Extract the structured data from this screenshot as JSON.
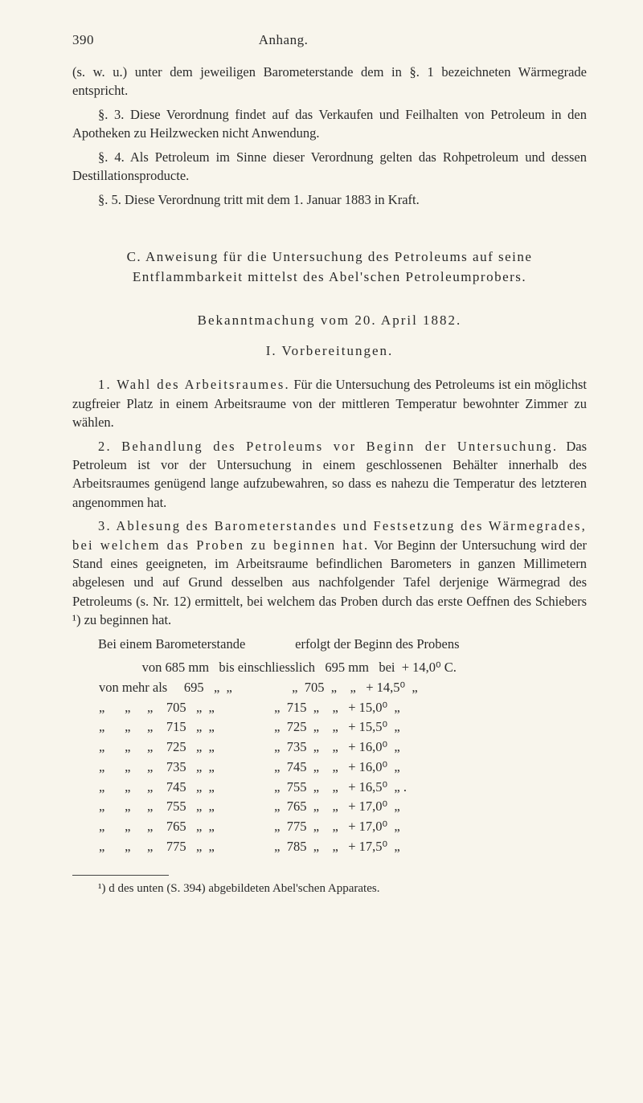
{
  "page_number": "390",
  "running_head": "Anhang.",
  "background_color": "#f8f5ec",
  "text_color": "#2a2a2a",
  "font_family": "Georgia, 'Times New Roman', serif",
  "body_fontsize_pt": 12,
  "para_sw": "(s. w. u.) unter dem jeweiligen Barometerstande dem in §. 1 bezeichneten Wärmegrade entspricht.",
  "para_s3": "§. 3.   Diese Verordnung findet auf das Verkaufen und Feilhalten von Petroleum in den Apotheken zu Heilzwecken nicht Anwendung.",
  "para_s4": "§. 4.   Als Petroleum im Sinne dieser Verordnung gelten das Rohpetroleum und dessen Destillationsproducte.",
  "para_s5": "§. 5.   Diese Verordnung tritt mit dem 1. Januar 1883 in Kraft.",
  "section_c": "C.  Anweisung für die Untersuchung des Petroleums auf seine Entflammbarkeit mittelst des Abel'schen Petroleumprobers.",
  "bekannt": "Bekanntmachung vom 20. April 1882.",
  "vorb": "I.   Vorbereitungen.",
  "para1_lead": "1. Wahl des Arbeitsraumes.",
  "para1_body": "  Für die Untersuchung des Petroleums ist ein möglichst zugfreier Platz in einem Arbeitsraume von der mittleren Temperatur bewohnter Zimmer zu wählen.",
  "para2_lead": "2. Behandlung des Petroleums vor Beginn der Untersuchung.",
  "para2_body": "  Das Petroleum ist vor der Untersuchung in einem geschlossenen Behälter innerhalb des Arbeitsraumes genügend lange aufzubewahren, so dass es nahezu die Temperatur des letzteren angenommen hat.",
  "para3_lead": "3. Ablesung des Barometerstandes und Festsetzung des Wärmegrades, bei welchem das Proben zu beginnen hat.",
  "para3_body": "  Vor Beginn der Untersuchung wird der Stand eines geeigneten, im Arbeitsraume befindlichen Barometers in ganzen Millimetern abgelesen und auf Grund desselben aus nachfolgender Tafel derjenige Wärmegrad des Petroleums (s. Nr. 12) ermittelt, bei welchem das Proben durch das erste Oeffnen des Schiebers ¹) zu beginnen hat.",
  "table_intro": "Bei einem Barometerstande               erfolgt der Beginn des Probens",
  "table": {
    "type": "table",
    "font_family": "Georgia, 'Times New Roman', serif",
    "rows": [
      [
        "",
        "von",
        "685 mm",
        "bis einschliesslich",
        "695 mm",
        "bei",
        "+ 14,0⁰ C."
      ],
      [
        "von mehr als",
        "",
        "695   „",
        "„                  „",
        "705  „",
        " „",
        "+ 14,5⁰  „"
      ],
      [
        "„      „     „",
        "",
        "705   „",
        "„                  „",
        "715  „",
        " „",
        "+ 15,0⁰  „"
      ],
      [
        "„      „     „",
        "",
        "715   „",
        "„                  „",
        "725  „",
        " „",
        "+ 15,5⁰  „"
      ],
      [
        "„      „     „",
        "",
        "725   „",
        "„                  „",
        "735  „",
        " „",
        "+ 16,0⁰  „"
      ],
      [
        "„      „     „",
        "",
        "735   „",
        "„                  „",
        "745  „",
        " „",
        "+ 16,0⁰  „"
      ],
      [
        "„      „     „",
        "",
        "745   „",
        "„                  „",
        "755  „",
        " „",
        "+ 16,5⁰  „ ."
      ],
      [
        "„      „     „",
        "",
        "755   „",
        "„                  „",
        "765  „",
        " „",
        "+ 17,0⁰  „"
      ],
      [
        "„      „     „",
        "",
        "765   „",
        "„                  „",
        "775  „",
        " „",
        "+ 17,0⁰  „"
      ],
      [
        "„      „     „",
        "",
        "775   „",
        "„                  „",
        "785  „",
        " „",
        "+ 17,5⁰  „"
      ]
    ]
  },
  "footnote": "¹) d des unten (S. 394) abgebildeten Abel'schen Apparates."
}
